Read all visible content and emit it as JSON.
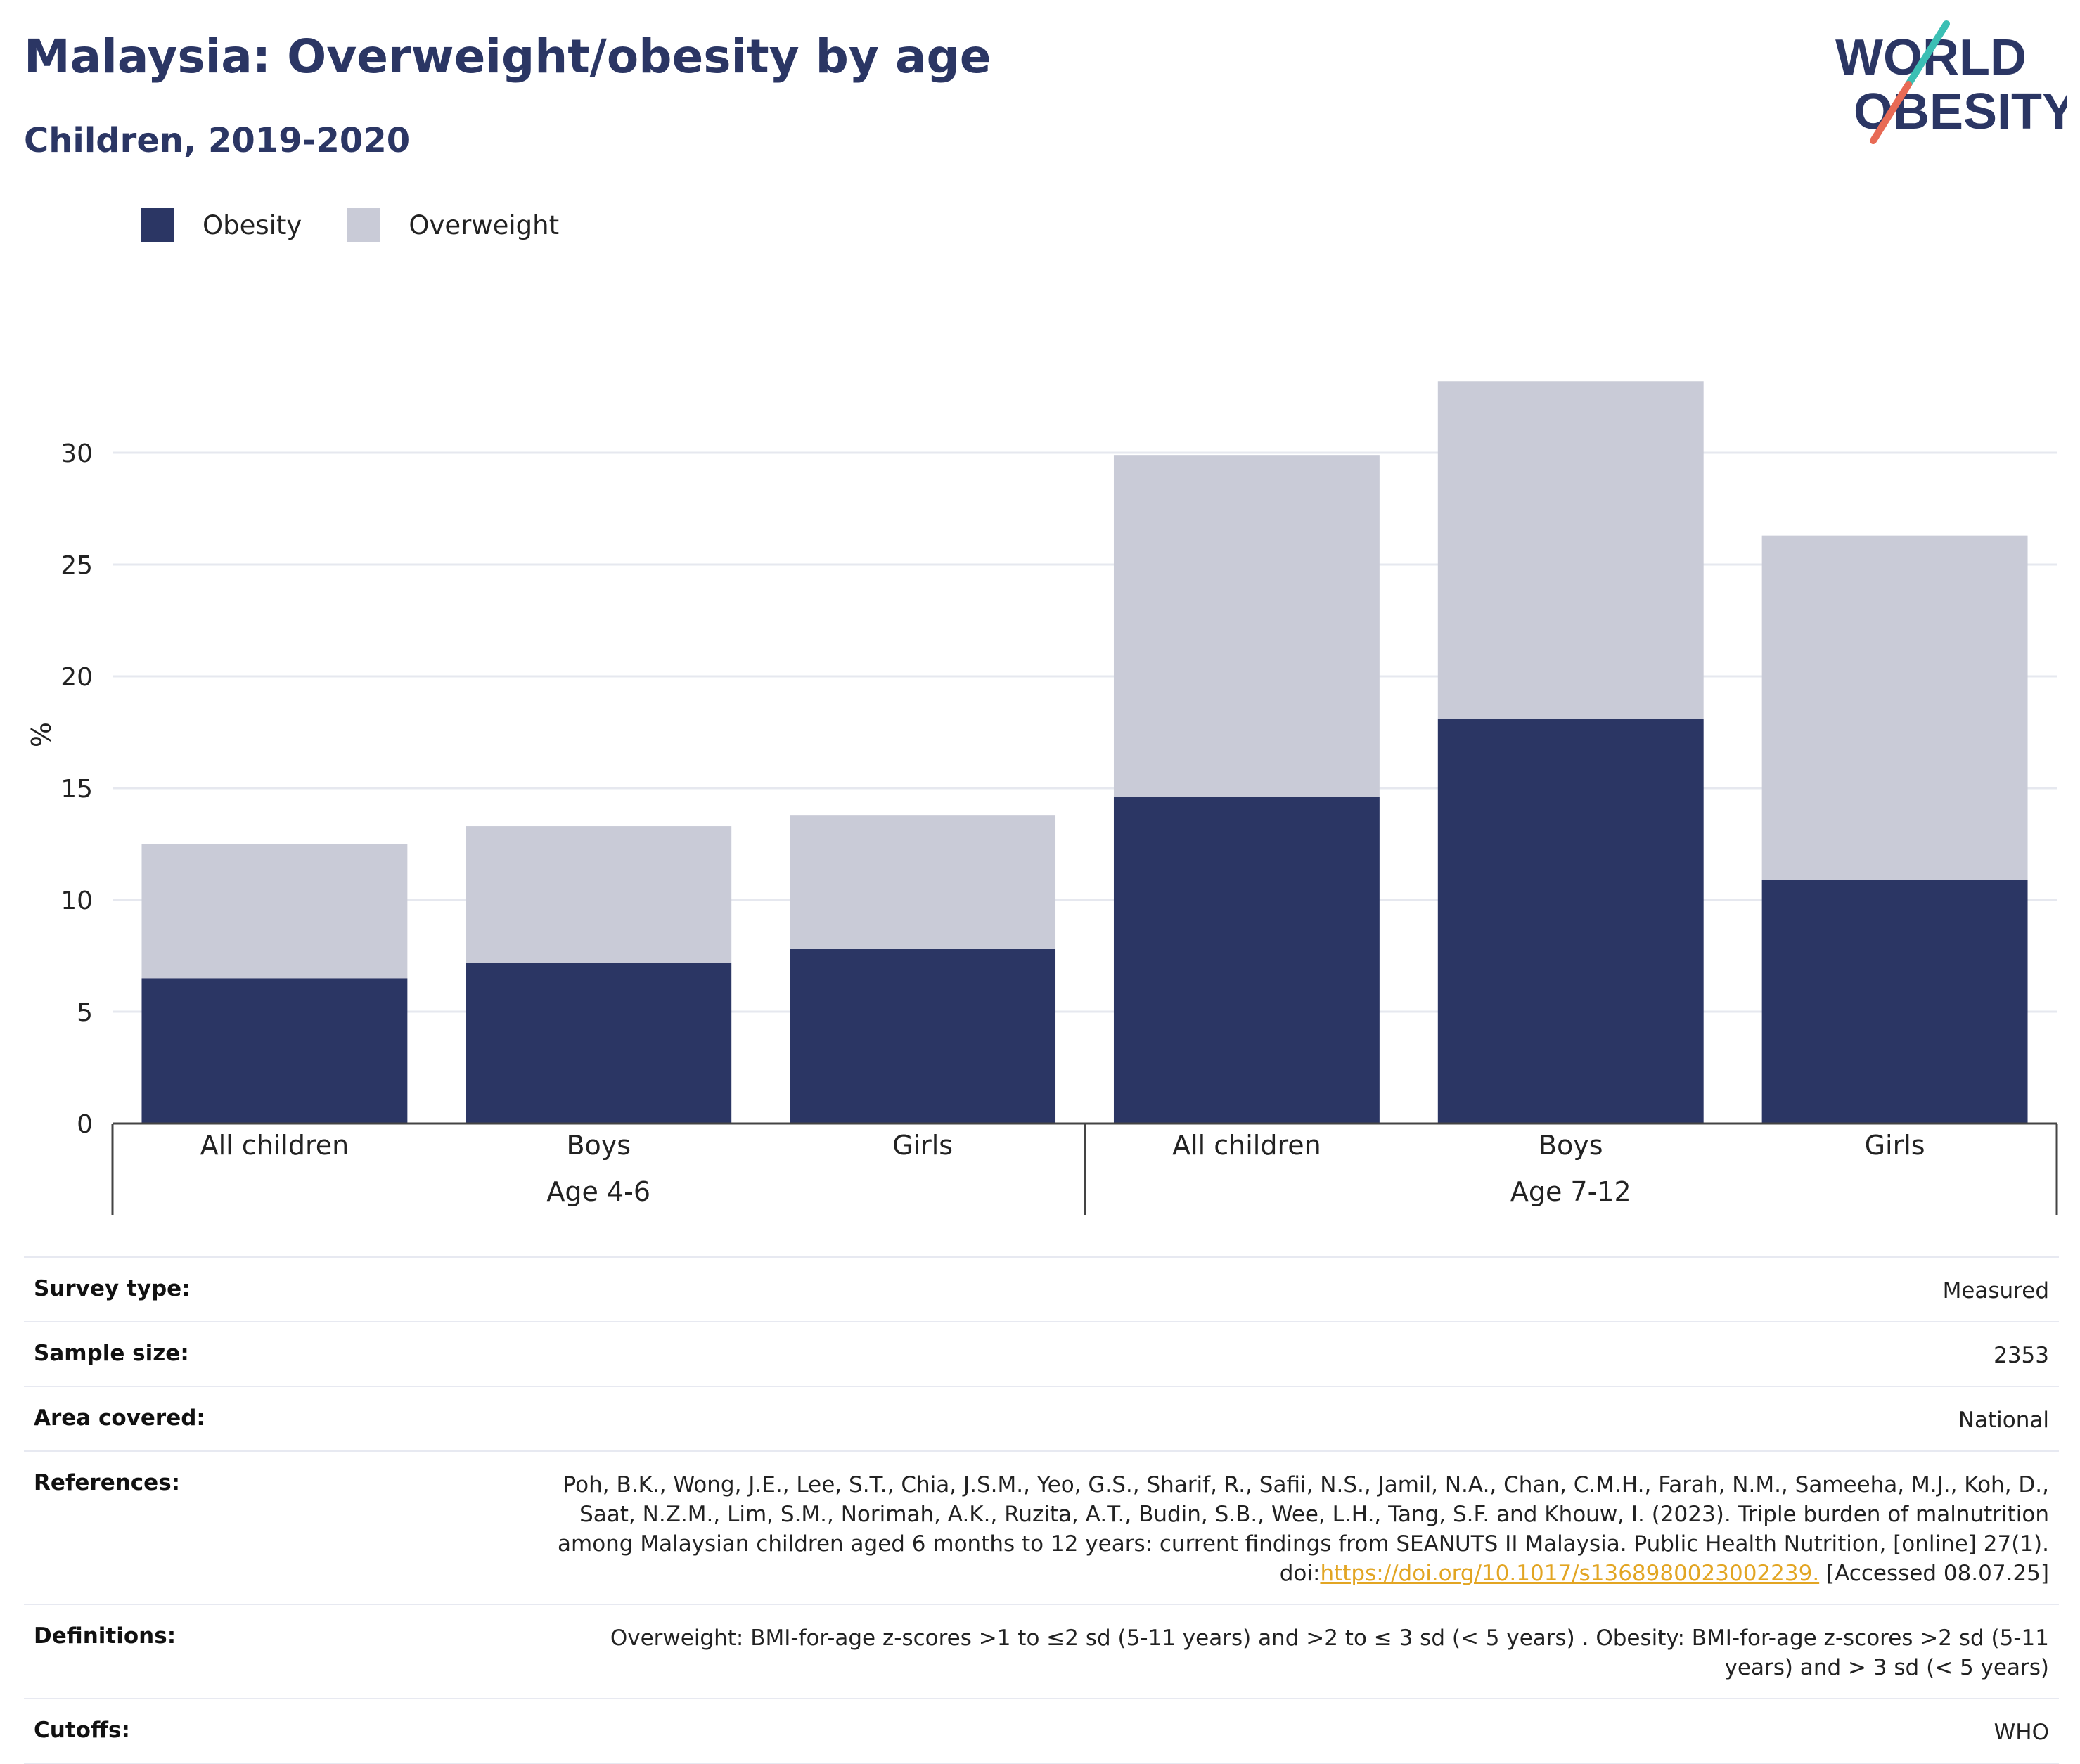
{
  "header": {
    "title": "Malaysia: Overweight/obesity by age",
    "subtitle": "Children, 2019-2020"
  },
  "logo": {
    "line1": "WORLD",
    "line2": "OBESITY"
  },
  "legend": [
    {
      "label": "Obesity",
      "color": "#2b3664"
    },
    {
      "label": "Overweight",
      "color": "#c9cbd7"
    }
  ],
  "chart_data": {
    "type": "bar",
    "stacked": true,
    "ylabel": "%",
    "ylim": [
      0,
      33
    ],
    "yticks": [
      0,
      5,
      10,
      15,
      20,
      25,
      30
    ],
    "grid": true,
    "legend_position": "top-left",
    "groups": [
      {
        "label": "Age 4-6",
        "categories": [
          "All children",
          "Boys",
          "Girls"
        ]
      },
      {
        "label": "Age 7-12",
        "categories": [
          "All children",
          "Boys",
          "Girls"
        ]
      }
    ],
    "series": [
      {
        "name": "Obesity",
        "color": "#2b3664",
        "values": [
          6.5,
          7.2,
          7.8,
          14.6,
          18.1,
          10.9
        ]
      },
      {
        "name": "Overweight",
        "color": "#c9cbd7",
        "values": [
          6.0,
          6.1,
          6.0,
          15.3,
          15.1,
          15.4
        ]
      }
    ]
  },
  "info": {
    "survey_type": {
      "label": "Survey type:",
      "value": "Measured"
    },
    "sample_size": {
      "label": "Sample size:",
      "value": "2353"
    },
    "area_covered": {
      "label": "Area covered:",
      "value": "National"
    },
    "references": {
      "label": "References:",
      "text": "Poh, B.K., Wong, J.E., Lee, S.T., Chia, J.S.M., Yeo, G.S., Sharif, R., Safii, N.S., Jamil, N.A., Chan, C.M.H., Farah, N.M., Sameeha, M.J., Koh, D., Saat, N.Z.M., Lim, S.M., Norimah, A.K., Ruzita, A.T., Budin, S.B., Wee, L.H., Tang, S.F. and Khouw, I. (2023). Triple burden of malnutrition among Malaysian children aged 6 months to 12 years: current findings from SEANUTS II Malaysia. Public Health Nutrition, [online] 27(1). doi:",
      "link": "https://doi.org/10.1017/s1368980023002239.",
      "suffix": " [Accessed 08.07.25]"
    },
    "definitions": {
      "label": "Definitions:",
      "value": "Overweight: BMI-for-age z-scores >1 to ≤2 sd (5-11 years) and >2 to ≤ 3 sd (< 5 years) . Obesity: BMI-for-age z-scores >2 sd (5-11 years) and > 3 sd (< 5 years)"
    },
    "cutoffs": {
      "label": "Cutoffs:",
      "value": "WHO"
    }
  }
}
